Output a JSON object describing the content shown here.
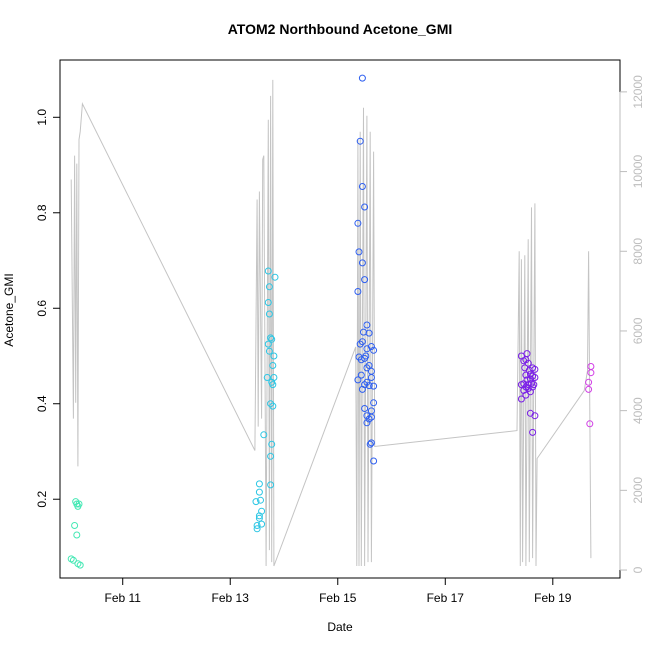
{
  "chart_data": {
    "type": "scatter",
    "title": "ATOM2 Northbound Acetone_GMI",
    "xlabel": "Date",
    "ylabel": "Acetone_GMI",
    "xlim": [
      "2017-02-09T20:00",
      "2017-02-20T06:00"
    ],
    "ylim": [
      0.035,
      1.12
    ],
    "y2lim": [
      -200,
      12800
    ],
    "x_ticks": [
      {
        "label": "Feb 11",
        "value": "2017-02-11T00:00"
      },
      {
        "label": "Feb 13",
        "value": "2017-02-13T00:00"
      },
      {
        "label": "Feb 15",
        "value": "2017-02-15T00:00"
      },
      {
        "label": "Feb 17",
        "value": "2017-02-17T00:00"
      },
      {
        "label": "Feb 19",
        "value": "2017-02-19T00:00"
      }
    ],
    "y_ticks": [
      "0.2",
      "0.4",
      "0.6",
      "0.8",
      "1.0"
    ],
    "y2_ticks": [
      "0",
      "2000",
      "4000",
      "6000",
      "8000",
      "10000",
      "12000"
    ],
    "series": [
      {
        "color": "#44e8b4",
        "points": [
          [
            "2017-02-10T01:00",
            0.075
          ],
          [
            "2017-02-10T02:00",
            0.072
          ],
          [
            "2017-02-10T03:00",
            0.195
          ],
          [
            "2017-02-10T03:30",
            0.19
          ],
          [
            "2017-02-10T02:30",
            0.145
          ],
          [
            "2017-02-10T04:00",
            0.185
          ],
          [
            "2017-02-10T04:30",
            0.19
          ],
          [
            "2017-02-10T03:30",
            0.125
          ],
          [
            "2017-02-10T04:00",
            0.065
          ],
          [
            "2017-02-10T05:00",
            0.062
          ]
        ]
      },
      {
        "color": "#2cc6e4",
        "points": [
          [
            "2017-02-13T12:00",
            0.138
          ],
          [
            "2017-02-13T12:00",
            0.145
          ],
          [
            "2017-02-13T11:30",
            0.195
          ],
          [
            "2017-02-13T13:00",
            0.16
          ],
          [
            "2017-02-13T13:00",
            0.165
          ],
          [
            "2017-02-13T14:00",
            0.175
          ],
          [
            "2017-02-13T13:30",
            0.198
          ],
          [
            "2017-02-13T13:00",
            0.215
          ],
          [
            "2017-02-13T13:00",
            0.232
          ],
          [
            "2017-02-13T14:00",
            0.148
          ],
          [
            "2017-02-13T15:00",
            0.335
          ],
          [
            "2017-02-13T16:30",
            0.455
          ],
          [
            "2017-02-13T17:00",
            0.525
          ],
          [
            "2017-02-13T17:00",
            0.678
          ],
          [
            "2017-02-13T17:30",
            0.645
          ],
          [
            "2017-02-13T17:00",
            0.612
          ],
          [
            "2017-02-13T17:30",
            0.588
          ],
          [
            "2017-02-13T18:00",
            0.538
          ],
          [
            "2017-02-13T17:30",
            0.51
          ],
          [
            "2017-02-13T18:30",
            0.535
          ],
          [
            "2017-02-13T19:00",
            0.48
          ],
          [
            "2017-02-13T18:00",
            0.4
          ],
          [
            "2017-02-13T19:00",
            0.395
          ],
          [
            "2017-02-13T19:30",
            0.5
          ],
          [
            "2017-02-13T19:30",
            0.455
          ],
          [
            "2017-02-13T18:30",
            0.445
          ],
          [
            "2017-02-13T18:30",
            0.315
          ],
          [
            "2017-02-13T18:00",
            0.29
          ],
          [
            "2017-02-13T18:00",
            0.23
          ],
          [
            "2017-02-13T20:00",
            0.665
          ],
          [
            "2017-02-13T19:00",
            0.44
          ]
        ]
      },
      {
        "color": "#2e5ff0",
        "points": [
          [
            "2017-02-15T11:00",
            1.082
          ],
          [
            "2017-02-15T10:00",
            0.95
          ],
          [
            "2017-02-15T11:00",
            0.855
          ],
          [
            "2017-02-15T12:00",
            0.812
          ],
          [
            "2017-02-15T09:00",
            0.778
          ],
          [
            "2017-02-15T09:30",
            0.718
          ],
          [
            "2017-02-15T11:00",
            0.695
          ],
          [
            "2017-02-15T09:00",
            0.635
          ],
          [
            "2017-02-15T12:00",
            0.66
          ],
          [
            "2017-02-15T13:00",
            0.565
          ],
          [
            "2017-02-15T11:30",
            0.55
          ],
          [
            "2017-02-15T14:00",
            0.548
          ],
          [
            "2017-02-15T10:00",
            0.525
          ],
          [
            "2017-02-15T11:00",
            0.53
          ],
          [
            "2017-02-15T12:30",
            0.5
          ],
          [
            "2017-02-15T13:00",
            0.515
          ],
          [
            "2017-02-15T09:30",
            0.498
          ],
          [
            "2017-02-15T10:30",
            0.492
          ],
          [
            "2017-02-15T12:00",
            0.495
          ],
          [
            "2017-02-15T15:00",
            0.52
          ],
          [
            "2017-02-15T16:00",
            0.512
          ],
          [
            "2017-02-15T14:00",
            0.48
          ],
          [
            "2017-02-15T13:00",
            0.475
          ],
          [
            "2017-02-15T15:00",
            0.468
          ],
          [
            "2017-02-15T15:00",
            0.455
          ],
          [
            "2017-02-15T10:30",
            0.46
          ],
          [
            "2017-02-15T09:00",
            0.45
          ],
          [
            "2017-02-15T12:00",
            0.44
          ],
          [
            "2017-02-15T13:00",
            0.445
          ],
          [
            "2017-02-15T14:00",
            0.438
          ],
          [
            "2017-02-15T16:00",
            0.437
          ],
          [
            "2017-02-15T11:00",
            0.43
          ],
          [
            "2017-02-15T12:00",
            0.39
          ],
          [
            "2017-02-15T15:00",
            0.385
          ],
          [
            "2017-02-15T13:00",
            0.375
          ],
          [
            "2017-02-15T14:00",
            0.368
          ],
          [
            "2017-02-15T15:00",
            0.372
          ],
          [
            "2017-02-15T13:00",
            0.36
          ],
          [
            "2017-02-15T14:30",
            0.315
          ],
          [
            "2017-02-15T15:00",
            0.318
          ],
          [
            "2017-02-15T16:00",
            0.28
          ],
          [
            "2017-02-15T16:00",
            0.402
          ]
        ]
      },
      {
        "color": "#7a1fe8",
        "points": [
          [
            "2017-02-18T10:00",
            0.5
          ],
          [
            "2017-02-18T11:00",
            0.49
          ],
          [
            "2017-02-18T12:00",
            0.492
          ],
          [
            "2017-02-18T13:00",
            0.485
          ],
          [
            "2017-02-18T11:30",
            0.475
          ],
          [
            "2017-02-18T13:30",
            0.47
          ],
          [
            "2017-02-18T15:00",
            0.475
          ],
          [
            "2017-02-18T16:00",
            0.472
          ],
          [
            "2017-02-18T12:00",
            0.46
          ],
          [
            "2017-02-18T14:00",
            0.462
          ],
          [
            "2017-02-18T15:00",
            0.458
          ],
          [
            "2017-02-18T12:30",
            0.45
          ],
          [
            "2017-02-18T14:00",
            0.452
          ],
          [
            "2017-02-18T16:00",
            0.455
          ],
          [
            "2017-02-18T10:00",
            0.44
          ],
          [
            "2017-02-18T11:00",
            0.442
          ],
          [
            "2017-02-18T13:00",
            0.44
          ],
          [
            "2017-02-18T14:30",
            0.443
          ],
          [
            "2017-02-18T15:30",
            0.44
          ],
          [
            "2017-02-18T12:00",
            0.435
          ],
          [
            "2017-02-18T13:00",
            0.432
          ],
          [
            "2017-02-18T15:00",
            0.435
          ],
          [
            "2017-02-18T14:00",
            0.425
          ],
          [
            "2017-02-18T11:00",
            0.428
          ],
          [
            "2017-02-18T10:00",
            0.41
          ],
          [
            "2017-02-18T12:00",
            0.418
          ],
          [
            "2017-02-18T14:00",
            0.38
          ],
          [
            "2017-02-18T16:00",
            0.375
          ],
          [
            "2017-02-18T15:00",
            0.34
          ],
          [
            "2017-02-18T12:30",
            0.505
          ]
        ]
      },
      {
        "color": "#d23ee6",
        "points": [
          [
            "2017-02-19T17:00",
            0.478
          ],
          [
            "2017-02-19T17:00",
            0.465
          ],
          [
            "2017-02-19T16:00",
            0.445
          ],
          [
            "2017-02-19T16:00",
            0.43
          ],
          [
            "2017-02-19T16:30",
            0.358
          ]
        ]
      }
    ],
    "altitude_line": {
      "color": "#c4c4c4",
      "points": [
        [
          "2017-02-10T01:00",
          9800
        ],
        [
          "2017-02-10T02:00",
          3800
        ],
        [
          "2017-02-10T02:30",
          10400
        ],
        [
          "2017-02-10T03:00",
          4200
        ],
        [
          "2017-02-10T03:30",
          10200
        ],
        [
          "2017-02-10T04:00",
          2600
        ],
        [
          "2017-02-10T04:30",
          10800
        ],
        [
          "2017-02-10T05:00",
          11000
        ],
        [
          "2017-02-10T06:00",
          11700
        ],
        [
          "2017-02-13T11:00",
          3000
        ],
        [
          "2017-02-13T12:00",
          9300
        ],
        [
          "2017-02-13T12:30",
          3600
        ],
        [
          "2017-02-13T13:00",
          9500
        ],
        [
          "2017-02-13T14:00",
          3800
        ],
        [
          "2017-02-13T14:30",
          10300
        ],
        [
          "2017-02-13T15:00",
          10400
        ],
        [
          "2017-02-13T16:00",
          100
        ],
        [
          "2017-02-13T17:00",
          11300
        ],
        [
          "2017-02-13T17:30",
          500
        ],
        [
          "2017-02-13T18:00",
          11900
        ],
        [
          "2017-02-13T18:30",
          200
        ],
        [
          "2017-02-13T19:00",
          12300
        ],
        [
          "2017-02-13T19:30",
          100
        ],
        [
          "2017-02-15T08:00",
          5600
        ],
        [
          "2017-02-15T08:30",
          100
        ],
        [
          "2017-02-15T09:00",
          10800
        ],
        [
          "2017-02-15T09:30",
          100
        ],
        [
          "2017-02-15T10:00",
          11000
        ],
        [
          "2017-02-15T10:30",
          100
        ],
        [
          "2017-02-15T11:30",
          11600
        ],
        [
          "2017-02-15T12:00",
          100
        ],
        [
          "2017-02-15T13:00",
          11400
        ],
        [
          "2017-02-15T13:30",
          200
        ],
        [
          "2017-02-15T14:30",
          11000
        ],
        [
          "2017-02-15T15:00",
          200
        ],
        [
          "2017-02-15T16:00",
          10500
        ],
        [
          "2017-02-15T16:30",
          3100
        ],
        [
          "2017-02-18T08:00",
          3500
        ],
        [
          "2017-02-18T09:00",
          8000
        ],
        [
          "2017-02-18T09:30",
          100
        ],
        [
          "2017-02-18T10:00",
          7800
        ],
        [
          "2017-02-18T10:30",
          200
        ],
        [
          "2017-02-18T11:30",
          7900
        ],
        [
          "2017-02-18T12:00",
          100
        ],
        [
          "2017-02-18T13:00",
          8300
        ],
        [
          "2017-02-18T13:30",
          200
        ],
        [
          "2017-02-18T14:30",
          9100
        ],
        [
          "2017-02-18T15:00",
          300
        ],
        [
          "2017-02-18T16:00",
          9200
        ],
        [
          "2017-02-18T16:30",
          100
        ],
        [
          "2017-02-18T17:00",
          2800
        ],
        [
          "2017-02-19T14:00",
          4500
        ],
        [
          "2017-02-19T15:30",
          5000
        ],
        [
          "2017-02-19T16:00",
          8000
        ],
        [
          "2017-02-19T17:00",
          300
        ]
      ]
    }
  }
}
